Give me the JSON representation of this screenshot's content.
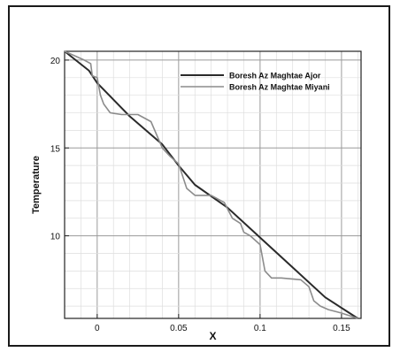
{
  "chart_data": {
    "type": "line",
    "title": "",
    "xlabel": "X",
    "ylabel": "Temperature",
    "xlim": [
      -0.02,
      0.162
    ],
    "ylim": [
      5.3,
      20.5
    ],
    "x_ticks": [
      0,
      0.05,
      0.1,
      0.15
    ],
    "x_tick_labels": [
      "0",
      "0.05",
      "0.1",
      "0.15"
    ],
    "y_ticks": [
      10,
      15,
      20
    ],
    "y_tick_labels": [
      "10",
      "15",
      "20"
    ],
    "grid": true,
    "legend_position": "top-right",
    "series": [
      {
        "name": "Boresh Az Maghtae Ajor",
        "color": "#2a2a2a",
        "x": [
          -0.02,
          -0.005,
          0.0,
          0.02,
          0.04,
          0.05,
          0.06,
          0.08,
          0.1,
          0.12,
          0.14,
          0.16
        ],
        "y": [
          20.5,
          19.4,
          18.7,
          16.8,
          15.2,
          14.0,
          12.9,
          11.6,
          9.9,
          8.2,
          6.5,
          5.3
        ]
      },
      {
        "name": "Boresh Az Maghtae Miyani",
        "color": "#8c8c8c",
        "x": [
          -0.02,
          -0.008,
          -0.004,
          -0.003,
          0.0,
          0.002,
          0.004,
          0.008,
          0.015,
          0.025,
          0.033,
          0.04,
          0.042,
          0.045,
          0.05,
          0.055,
          0.06,
          0.07,
          0.078,
          0.083,
          0.088,
          0.09,
          0.094,
          0.1,
          0.103,
          0.107,
          0.113,
          0.125,
          0.13,
          0.133,
          0.137,
          0.142,
          0.15,
          0.16
        ],
        "y": [
          20.5,
          20.0,
          19.8,
          19.1,
          19.0,
          18.0,
          17.5,
          17.0,
          16.9,
          16.9,
          16.5,
          15.0,
          14.8,
          14.5,
          14.1,
          12.7,
          12.3,
          12.3,
          11.9,
          11.0,
          10.7,
          10.2,
          10.0,
          9.5,
          8.0,
          7.6,
          7.6,
          7.5,
          7.1,
          6.3,
          6.0,
          5.8,
          5.6,
          5.3
        ]
      }
    ]
  }
}
